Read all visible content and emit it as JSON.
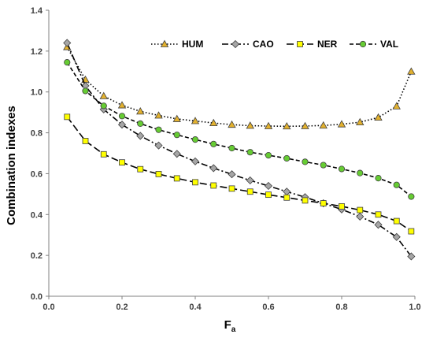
{
  "chart_data": {
    "type": "line",
    "title": "",
    "xlabel": "F",
    "xlabel_sub": "a",
    "ylabel": "Combination indexes",
    "xlim": [
      0.0,
      1.0
    ],
    "ylim": [
      0.0,
      1.4
    ],
    "xticks": [
      "0.0",
      "0.2",
      "0.4",
      "0.6",
      "0.8",
      "1.0"
    ],
    "yticks": [
      "0.0",
      "0.2",
      "0.4",
      "0.6",
      "0.8",
      "1.0",
      "1.2",
      "1.4"
    ],
    "grid": false,
    "legend_position": "top-right",
    "series": [
      {
        "name": "HUM",
        "marker": "triangle",
        "line": "dotted",
        "marker_color": "#E2B12F",
        "x": [
          0.05,
          0.1,
          0.15,
          0.2,
          0.25,
          0.3,
          0.35,
          0.4,
          0.45,
          0.5,
          0.55,
          0.6,
          0.65,
          0.7,
          0.75,
          0.8,
          0.85,
          0.9,
          0.95,
          0.99
        ],
        "y": [
          1.22,
          1.06,
          0.98,
          0.935,
          0.905,
          0.885,
          0.868,
          0.858,
          0.848,
          0.84,
          0.835,
          0.833,
          0.832,
          0.833,
          0.836,
          0.842,
          0.852,
          0.875,
          0.93,
          1.1
        ]
      },
      {
        "name": "CAO",
        "marker": "diamond",
        "line": "dash-dot",
        "marker_color": "#A6A6A6",
        "x": [
          0.05,
          0.1,
          0.15,
          0.2,
          0.25,
          0.3,
          0.35,
          0.4,
          0.45,
          0.5,
          0.55,
          0.6,
          0.65,
          0.7,
          0.75,
          0.8,
          0.85,
          0.9,
          0.95,
          0.99
        ],
        "y": [
          1.24,
          1.03,
          0.915,
          0.84,
          0.785,
          0.738,
          0.697,
          0.66,
          0.627,
          0.597,
          0.567,
          0.54,
          0.512,
          0.485,
          0.455,
          0.425,
          0.39,
          0.35,
          0.29,
          0.195
        ]
      },
      {
        "name": "NER",
        "marker": "square",
        "line": "long-dash",
        "marker_color": "#FFFF00",
        "x": [
          0.05,
          0.1,
          0.15,
          0.2,
          0.25,
          0.3,
          0.35,
          0.4,
          0.45,
          0.5,
          0.55,
          0.6,
          0.65,
          0.7,
          0.75,
          0.8,
          0.85,
          0.9,
          0.95,
          0.99
        ],
        "y": [
          0.878,
          0.76,
          0.695,
          0.655,
          0.622,
          0.598,
          0.577,
          0.558,
          0.542,
          0.527,
          0.512,
          0.497,
          0.483,
          0.469,
          0.455,
          0.44,
          0.422,
          0.4,
          0.368,
          0.318
        ]
      },
      {
        "name": "VAL",
        "marker": "circle",
        "line": "dashed",
        "marker_color": "#66CC33",
        "x": [
          0.05,
          0.1,
          0.15,
          0.2,
          0.25,
          0.3,
          0.35,
          0.4,
          0.45,
          0.5,
          0.55,
          0.6,
          0.65,
          0.7,
          0.75,
          0.8,
          0.85,
          0.9,
          0.95,
          0.99
        ],
        "y": [
          1.145,
          1.005,
          0.932,
          0.882,
          0.845,
          0.815,
          0.79,
          0.767,
          0.745,
          0.725,
          0.705,
          0.69,
          0.675,
          0.658,
          0.642,
          0.623,
          0.603,
          0.578,
          0.545,
          0.488
        ]
      }
    ]
  }
}
